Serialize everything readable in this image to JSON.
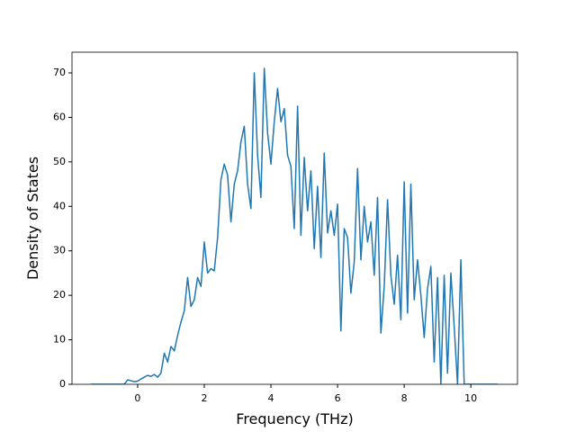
{
  "chart_data": {
    "type": "line",
    "xlabel": "Frequency (THz)",
    "ylabel": "Density of States",
    "x": [
      -1.4,
      -1.3,
      -1.2,
      -1.1,
      -1.0,
      -0.9,
      -0.8,
      -0.7,
      -0.6,
      -0.5,
      -0.4,
      -0.3,
      -0.2,
      -0.1,
      0.0,
      0.1,
      0.2,
      0.3,
      0.4,
      0.5,
      0.6,
      0.7,
      0.8,
      0.9,
      1.0,
      1.1,
      1.2,
      1.3,
      1.4,
      1.5,
      1.6,
      1.7,
      1.8,
      1.9,
      2.0,
      2.1,
      2.2,
      2.3,
      2.4,
      2.5,
      2.6,
      2.7,
      2.8,
      2.9,
      3.0,
      3.1,
      3.2,
      3.3,
      3.4,
      3.5,
      3.6,
      3.7,
      3.8,
      3.9,
      4.0,
      4.1,
      4.2,
      4.3,
      4.4,
      4.5,
      4.6,
      4.7,
      4.8,
      4.9,
      5.0,
      5.1,
      5.2,
      5.3,
      5.4,
      5.5,
      5.6,
      5.7,
      5.8,
      5.9,
      6.0,
      6.1,
      6.2,
      6.3,
      6.4,
      6.5,
      6.6,
      6.7,
      6.8,
      6.9,
      7.0,
      7.1,
      7.2,
      7.3,
      7.4,
      7.5,
      7.6,
      7.7,
      7.8,
      7.9,
      8.0,
      8.1,
      8.2,
      8.3,
      8.4,
      8.5,
      8.6,
      8.7,
      8.8,
      8.9,
      9.0,
      9.1,
      9.2,
      9.3,
      9.4,
      9.5,
      9.6,
      9.7,
      9.8,
      9.9,
      10.0,
      10.1,
      10.2,
      10.3,
      10.4,
      10.5,
      10.6,
      10.7,
      10.8
    ],
    "series": [
      {
        "color": "#1f77b4",
        "values": [
          0,
          0,
          0,
          0,
          0,
          0,
          0,
          0,
          0,
          0,
          0,
          1.0,
          0.8,
          0.6,
          0.7,
          1.2,
          1.6,
          2.0,
          1.8,
          2.2,
          1.6,
          2.5,
          7.0,
          5.0,
          8.5,
          7.5,
          11,
          14,
          16.5,
          24,
          17.5,
          19,
          24,
          22,
          32,
          25,
          26,
          25.5,
          33,
          46,
          49.5,
          47,
          36.5,
          45,
          48,
          54.5,
          58,
          45,
          39.5,
          70,
          51.5,
          42,
          71,
          56.5,
          49.5,
          59,
          66.5,
          59,
          62,
          51.5,
          49,
          35,
          62.5,
          33.5,
          51,
          39,
          48,
          30.5,
          44.5,
          28.5,
          52,
          34,
          39,
          33.5,
          40.5,
          12,
          35,
          33,
          20.5,
          27.5,
          48.5,
          28,
          40,
          32,
          36.5,
          24.5,
          42,
          11.5,
          22,
          41.5,
          24.5,
          18,
          29,
          14.5,
          45.5,
          16,
          45,
          19,
          28,
          20,
          10.5,
          21.5,
          26.5,
          5,
          24,
          0,
          24.5,
          2.5,
          25,
          13,
          0,
          28,
          0,
          0,
          0,
          0,
          0,
          0,
          0,
          0,
          0,
          0,
          0
        ]
      }
    ],
    "xlim": [
      -1.97,
      11.4
    ],
    "ylim": [
      0,
      74.65
    ],
    "xticks": [
      0,
      2,
      4,
      6,
      8,
      10
    ],
    "yticks": [
      0,
      10,
      20,
      30,
      40,
      50,
      60,
      70
    ]
  }
}
